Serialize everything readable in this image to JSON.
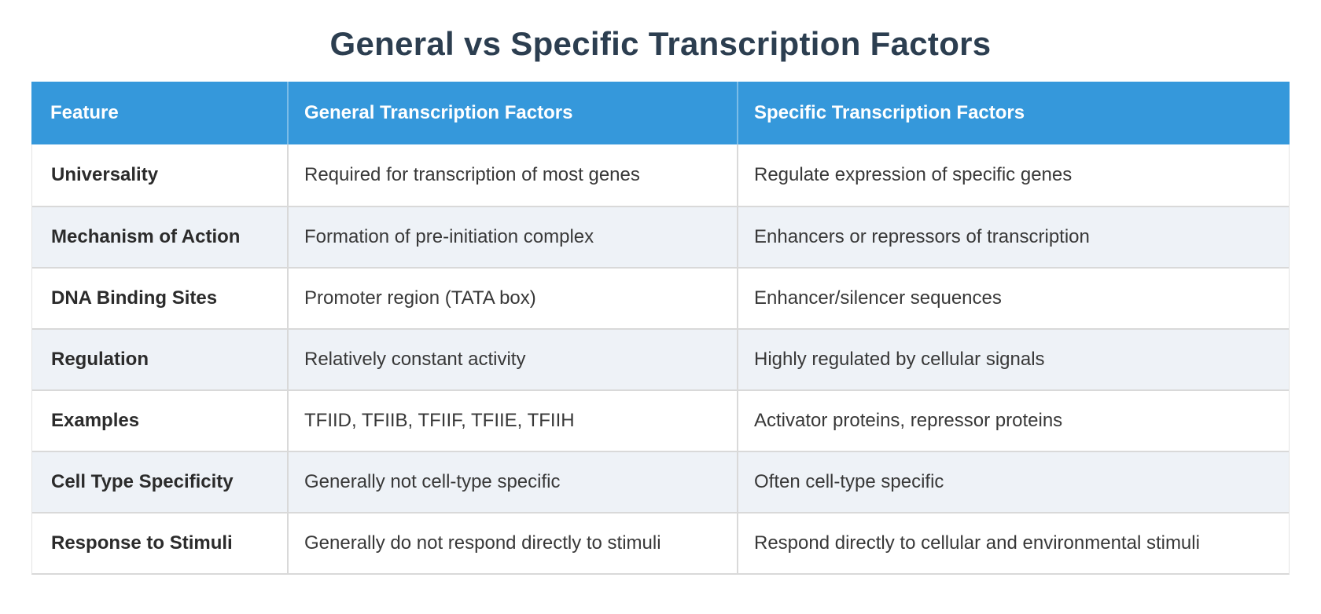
{
  "title": "General vs Specific Transcription Factors",
  "colors": {
    "header_bg": "#3598db",
    "header_text": "#ffffff",
    "alt_row_bg": "#eef2f7",
    "row_bg": "#ffffff",
    "border": "#d9d9d9",
    "title_text": "#2c3e50",
    "cell_text": "#383838"
  },
  "chart_data": {
    "type": "table",
    "title": "General vs Specific Transcription Factors",
    "columns": [
      "Feature",
      "General Transcription Factors",
      "Specific Transcription Factors"
    ],
    "rows": [
      {
        "feature": "Universality",
        "general": "Required for transcription of most genes",
        "specific": "Regulate expression of specific genes"
      },
      {
        "feature": "Mechanism of Action",
        "general": "Formation of pre-initiation complex",
        "specific": "Enhancers or repressors of transcription"
      },
      {
        "feature": "DNA Binding Sites",
        "general": "Promoter region (TATA box)",
        "specific": "Enhancer/silencer sequences"
      },
      {
        "feature": "Regulation",
        "general": "Relatively constant activity",
        "specific": "Highly regulated by cellular signals"
      },
      {
        "feature": "Examples",
        "general": "TFIID, TFIIB, TFIIF, TFIIE, TFIIH",
        "specific": "Activator proteins, repressor proteins"
      },
      {
        "feature": "Cell Type Specificity",
        "general": "Generally not cell-type specific",
        "specific": "Often cell-type specific"
      },
      {
        "feature": "Response to Stimuli",
        "general": "Generally do not respond directly to stimuli",
        "specific": "Respond directly to cellular and environmental stimuli"
      }
    ]
  }
}
